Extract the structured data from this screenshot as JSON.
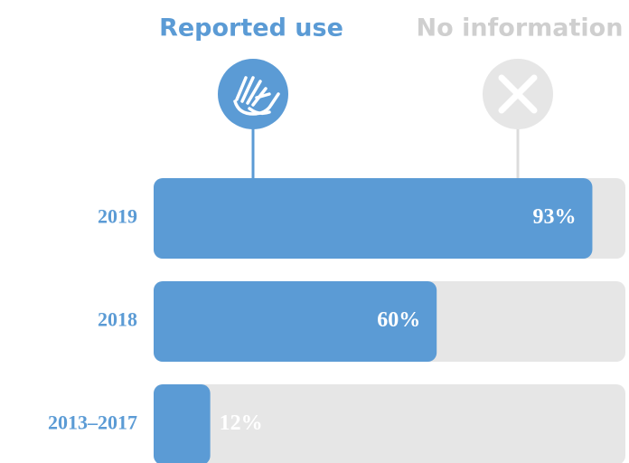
{
  "chart_data": {
    "type": "bar",
    "categories": [
      "2019",
      "2018",
      "2013–2017"
    ],
    "series": [
      {
        "name": "Reported use",
        "color": "#5b9bd5",
        "values": [
          93,
          60,
          12
        ],
        "value_labels": [
          "93%",
          "60%",
          "12%"
        ]
      }
    ],
    "track": {
      "name": "No information",
      "color": "#e6e6e6"
    },
    "xlim": [
      0,
      100
    ]
  }
}
